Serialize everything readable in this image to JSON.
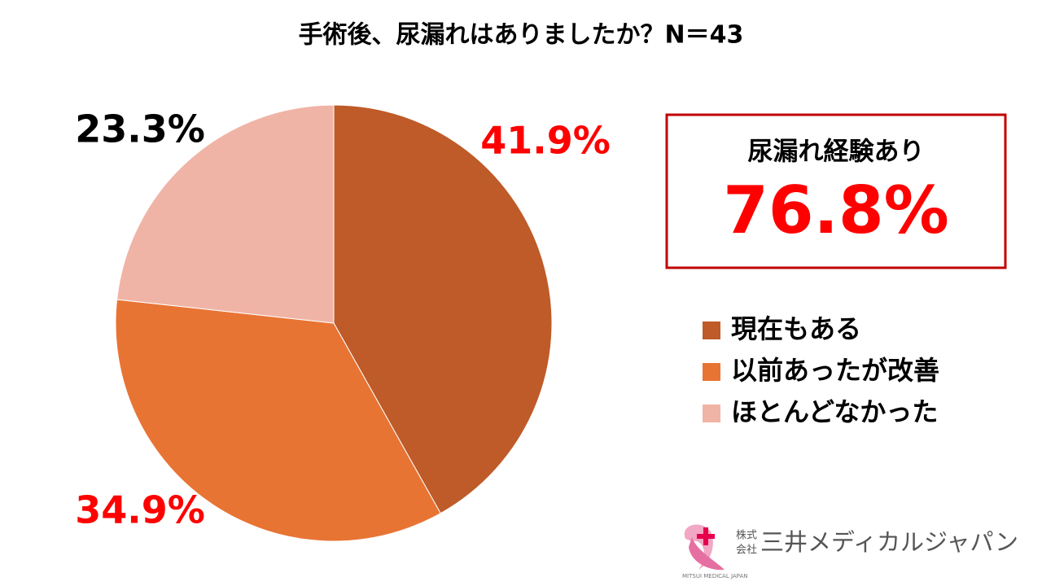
{
  "chart_data": {
    "type": "pie",
    "title": "手術後、尿漏れはありましたか？N＝43",
    "categories": [
      "現在もある",
      "以前あったが改善",
      "ほとんどなかった"
    ],
    "values": [
      41.9,
      34.9,
      23.3
    ],
    "value_labels": [
      "41.9%",
      "34.9%",
      "23.3%"
    ],
    "colors": [
      "#BE5B28",
      "#E87434",
      "#F0B4A6"
    ],
    "label_colors": [
      "#FF0000",
      "#FF0000",
      "#000000"
    ],
    "annotation": {
      "text": "尿漏れ経験あり",
      "value_label": "76.8%"
    }
  },
  "logo": {
    "kabushiki": [
      "株式",
      "会社"
    ],
    "name": "三井メディカルジャパン",
    "english": "MITSUI MEDICAL JAPAN"
  }
}
